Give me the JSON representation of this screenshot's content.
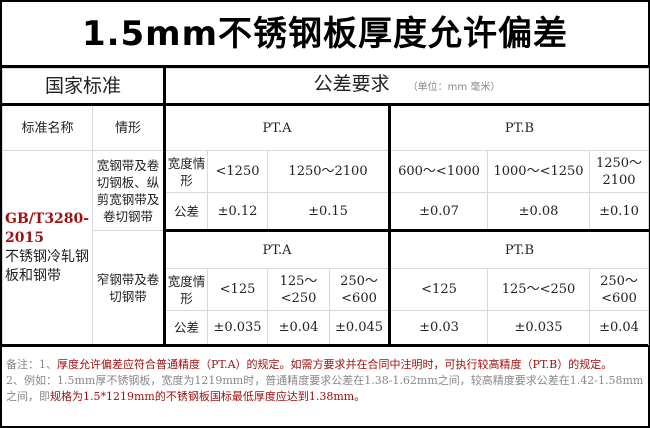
{
  "title": "1.5mm不锈钢板厚度允许偏差",
  "header": {
    "standard": "国家标准",
    "tolerance": "公差要求",
    "unit": "（单位：mm 毫米）"
  },
  "subheader": {
    "name": "标准名称",
    "situation": "情形",
    "pta": "PT.A",
    "ptb": "PT.B"
  },
  "standard": {
    "code": "GB/T3280-2015",
    "name": "不锈钢冷轧钢板和钢带"
  },
  "wide": {
    "label": "宽钢带及卷切钢板、纵剪宽钢带及卷切钢带",
    "width_label": "宽度情形",
    "tol_label": "公差",
    "pta_widths": [
      "<1250",
      "1250～2100"
    ],
    "pta_tols": [
      "±0.12",
      "±0.15"
    ],
    "ptb_widths": [
      "600～<1000",
      "1000～<1250",
      "1250～2100"
    ],
    "ptb_tols": [
      "±0.07",
      "±0.08",
      "±0.10"
    ]
  },
  "narrow": {
    "label": "窄钢带及卷切钢带",
    "pta": "PT.A",
    "ptb": "PT.B",
    "width_label": "宽度情形",
    "tol_label": "公差",
    "pta_widths": [
      "<125",
      "125～<250",
      "250～<600"
    ],
    "pta_tols": [
      "±0.035",
      "±0.04",
      "±0.045"
    ],
    "ptb_widths": [
      "<125",
      "125～<250",
      "250～<600"
    ],
    "ptb_tols": [
      "±0.03",
      "±0.035",
      "±0.04"
    ]
  },
  "notes": {
    "n1_prefix": "备注：1、",
    "n1_red": "厚度允许偏差应符合普通精度（PT.A）的规定。如需方要求并在合同中注明时，可执行较高精度（PT.B）的规定。",
    "n2_gray": "2、例如：1.5mm厚不锈钢板，宽度为1219mm时，普通精度要求公差在1.38-1.62mm之间，较高精度要求公差在1.42-1.58mm之间，即",
    "n2_red": "规格为1.5*1219mm的不锈钢板国标最低厚度应达到1.38mm。"
  },
  "colors": {
    "accent_red": "#a01010",
    "border": "#000000"
  }
}
